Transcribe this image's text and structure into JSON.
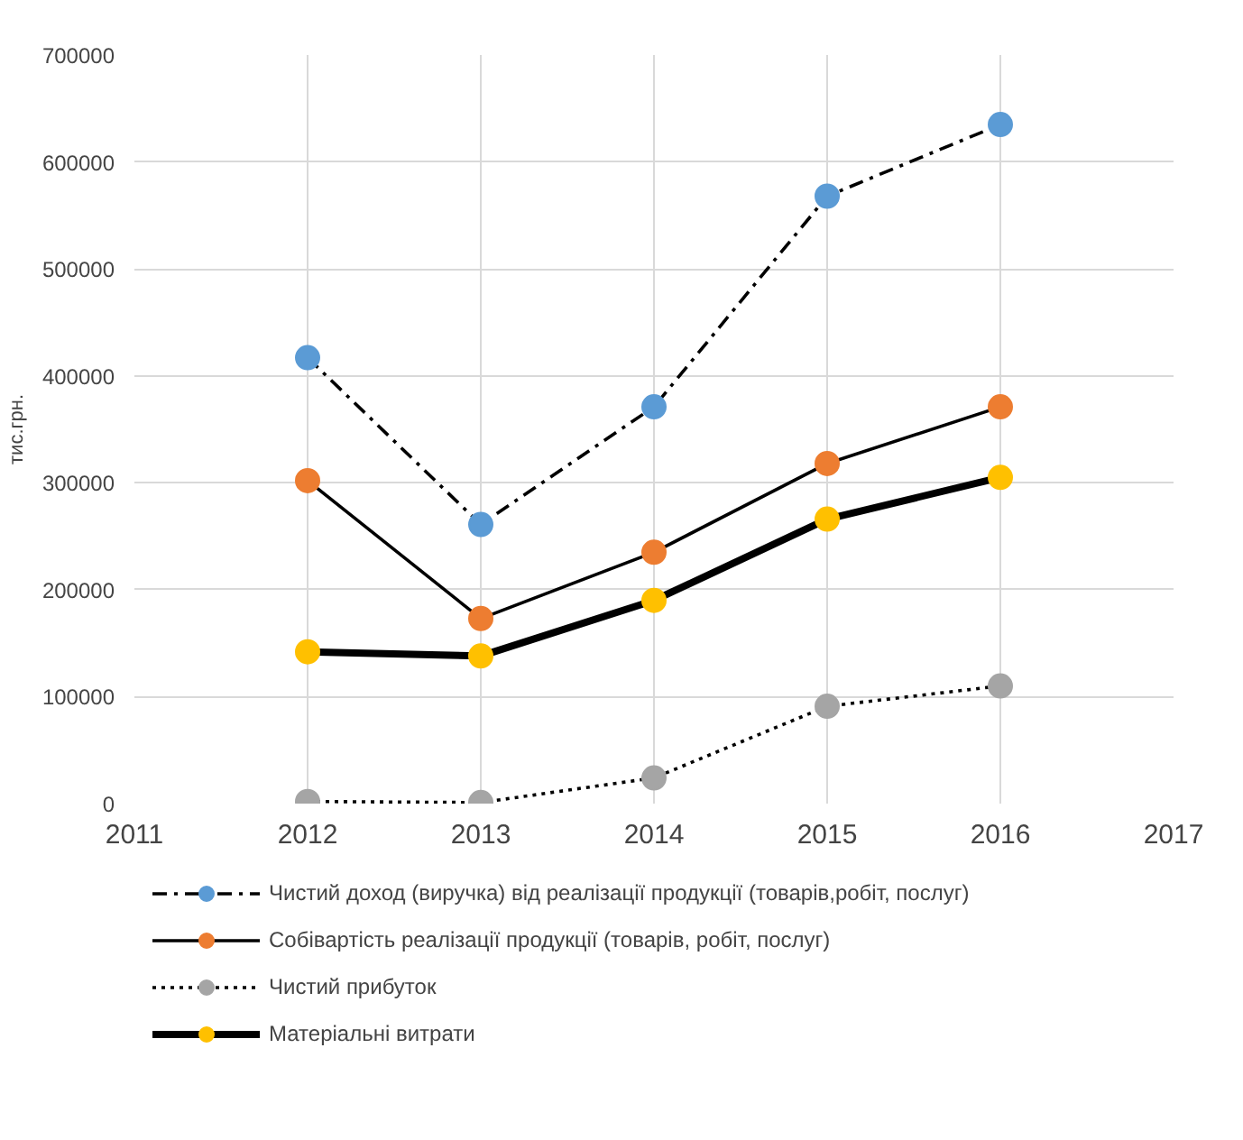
{
  "chart_data": {
    "type": "line",
    "ylabel": "тис.грн.",
    "x": [
      2012,
      2013,
      2014,
      2015,
      2016
    ],
    "xlim": [
      2011,
      2017
    ],
    "xticks": [
      2011,
      2012,
      2013,
      2014,
      2015,
      2016,
      2017
    ],
    "ylim": [
      0,
      700000
    ],
    "yticks": [
      0,
      100000,
      200000,
      300000,
      400000,
      500000,
      600000,
      700000
    ],
    "grid": true,
    "legend": "bottom",
    "marker": "circle",
    "series": [
      {
        "name": "Чистий доход (виручка) від реалізації продукції (товарів,робіт, послуг)",
        "color": "#5b9bd5",
        "line_style": "dashed",
        "values": [
          417000,
          261000,
          371000,
          568000,
          635000
        ]
      },
      {
        "name": "Собівартість реалізації продукції (товарів, робіт, послуг)",
        "color": "#ed7d31",
        "line_style": "solid",
        "values": [
          302000,
          173000,
          235000,
          318000,
          371000
        ]
      },
      {
        "name": "Чистий прибуток",
        "color": "#a5a5a5",
        "line_style": "dotted",
        "values": [
          2000,
          1000,
          24000,
          91000,
          110000
        ]
      },
      {
        "name": "Матеріальні витрати",
        "color": "#ffc000",
        "line_style": "solid",
        "values": [
          142000,
          138000,
          190000,
          266000,
          305000
        ]
      }
    ]
  }
}
